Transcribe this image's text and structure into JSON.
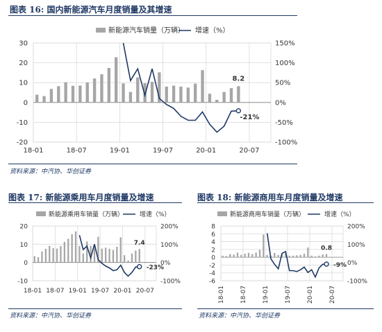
{
  "figures": {
    "fig16": {
      "title": "图表 16:  国内新能源汽车月度销量及其增速",
      "source": "资料来源：中汽协、华创证券"
    },
    "fig17": {
      "title": "图表 17:  新能源乘用车月度销量及增速",
      "source": "资料来源：中汽协、华创证券"
    },
    "fig18": {
      "title": "图表 18:  新能源商用车月度销量及增速",
      "source": "资料来源：中汽协、华创证券"
    }
  },
  "colors": {
    "bar": "#a6a6a6",
    "line": "#1f3864",
    "grid": "#d9d9d9"
  },
  "chart_data": [
    {
      "type": "bar+line",
      "title": "",
      "x_ticks": [
        "18-01",
        "18-07",
        "19-01",
        "19-07",
        "20-01",
        "20-07"
      ],
      "y_left": {
        "ticks": [
          "30",
          "20",
          "10",
          "0",
          "-10",
          "-20"
        ],
        "lim": [
          -20,
          30
        ]
      },
      "y_right": {
        "ticks": [
          "150%",
          "100%",
          "50%",
          "0%",
          "-50%",
          "-100%"
        ],
        "lim": [
          -100,
          150
        ]
      },
      "grid": true,
      "legend": "top-center",
      "series": [
        {
          "name": "新能源汽车销量（万辆）",
          "type": "bar",
          "axis": "left",
          "values": [
            3.9,
            3.2,
            6.8,
            8.2,
            10.2,
            8.4,
            8.5,
            10.1,
            12.1,
            14.2,
            17.4,
            22.8,
            9.6,
            5.3,
            12.6,
            9.7,
            10.4,
            15.2,
            8.0,
            8.5,
            8.0,
            7.5,
            9.5,
            16.3,
            4.4,
            1.3,
            5.3,
            7.2,
            8.2,
            null,
            null,
            null,
            null
          ],
          "value_label": "8.2"
        },
        {
          "name": "增速（%）",
          "type": "line",
          "axis": "right",
          "values": [
            null,
            null,
            null,
            null,
            null,
            null,
            null,
            null,
            null,
            null,
            null,
            null,
            150,
            55,
            85,
            18,
            85,
            10,
            -5,
            -15,
            -35,
            -45,
            -45,
            -24,
            -55,
            -75,
            -60,
            -22,
            -21,
            null,
            null,
            null,
            null
          ],
          "value_label": "-21%"
        }
      ]
    },
    {
      "type": "bar+line",
      "title": "",
      "x_ticks": [
        "18-01",
        "18-07",
        "19-01",
        "19-07",
        "20-01",
        "20-07"
      ],
      "y_left": {
        "ticks": [
          "20",
          "10",
          "0",
          "-10"
        ],
        "lim": [
          -10,
          20
        ]
      },
      "y_right": {
        "ticks": [
          "200%",
          "100%",
          "0%",
          "-100%"
        ],
        "lim": [
          -100,
          200
        ]
      },
      "grid": true,
      "legend": "top-center",
      "series": [
        {
          "name": "新能源乘用车销量（万辆）",
          "type": "bar",
          "axis": "left",
          "values": [
            3.5,
            2.9,
            6.0,
            7.5,
            9.0,
            7.8,
            7.6,
            9.0,
            11.3,
            13.0,
            15.5,
            17.0,
            9.0,
            4.9,
            11.5,
            9.1,
            9.6,
            14.1,
            7.6,
            8.1,
            7.5,
            6.9,
            8.6,
            13.8,
            4.0,
            1.1,
            4.9,
            6.5,
            7.4,
            null,
            null,
            null,
            null
          ],
          "value_label": "7.4"
        },
        {
          "name": "增速（%）",
          "type": "line",
          "axis": "right",
          "values": [
            null,
            null,
            null,
            null,
            null,
            null,
            null,
            null,
            null,
            null,
            null,
            null,
            150,
            70,
            90,
            25,
            100,
            15,
            -5,
            -20,
            -30,
            -45,
            -40,
            -15,
            -55,
            -75,
            -55,
            -25,
            -23,
            null,
            null,
            null,
            null
          ],
          "value_label": "-23%"
        }
      ]
    },
    {
      "type": "bar+line",
      "title": "",
      "x_ticks": [
        "18-01",
        "18-07",
        "19-01",
        "19-07",
        "20-01",
        "20-07"
      ],
      "y_left": {
        "ticks": [
          "8",
          "6",
          "4",
          "2",
          "0",
          "-2",
          "-4",
          "-6"
        ],
        "lim": [
          -6,
          8
        ]
      },
      "y_right": {
        "ticks": [
          "200%",
          "100%",
          "0%",
          "-100%"
        ],
        "lim": [
          -100,
          200
        ]
      },
      "grid": true,
      "legend": "top-center",
      "series": [
        {
          "name": "新能源商用车销量（万辆）",
          "type": "bar",
          "axis": "left",
          "values": [
            0.4,
            0.3,
            0.8,
            0.7,
            1.2,
            0.6,
            0.9,
            1.1,
            0.8,
            1.2,
            1.9,
            5.8,
            0.6,
            0.4,
            1.1,
            0.6,
            0.8,
            1.1,
            0.4,
            0.4,
            0.5,
            0.6,
            0.9,
            2.5,
            0.4,
            0.2,
            0.4,
            0.7,
            0.8,
            null,
            null,
            null,
            null
          ],
          "value_label": "0.8"
        },
        {
          "name": "增速（%）",
          "type": "line",
          "axis": "right",
          "values": [
            null,
            null,
            null,
            null,
            null,
            null,
            null,
            null,
            null,
            null,
            null,
            null,
            160,
            20,
            -10,
            -35,
            50,
            60,
            -45,
            -45,
            -50,
            -40,
            -25,
            -55,
            -40,
            -80,
            -30,
            -10,
            -9,
            null,
            null,
            null,
            null
          ],
          "value_label": "-9%"
        }
      ]
    }
  ]
}
